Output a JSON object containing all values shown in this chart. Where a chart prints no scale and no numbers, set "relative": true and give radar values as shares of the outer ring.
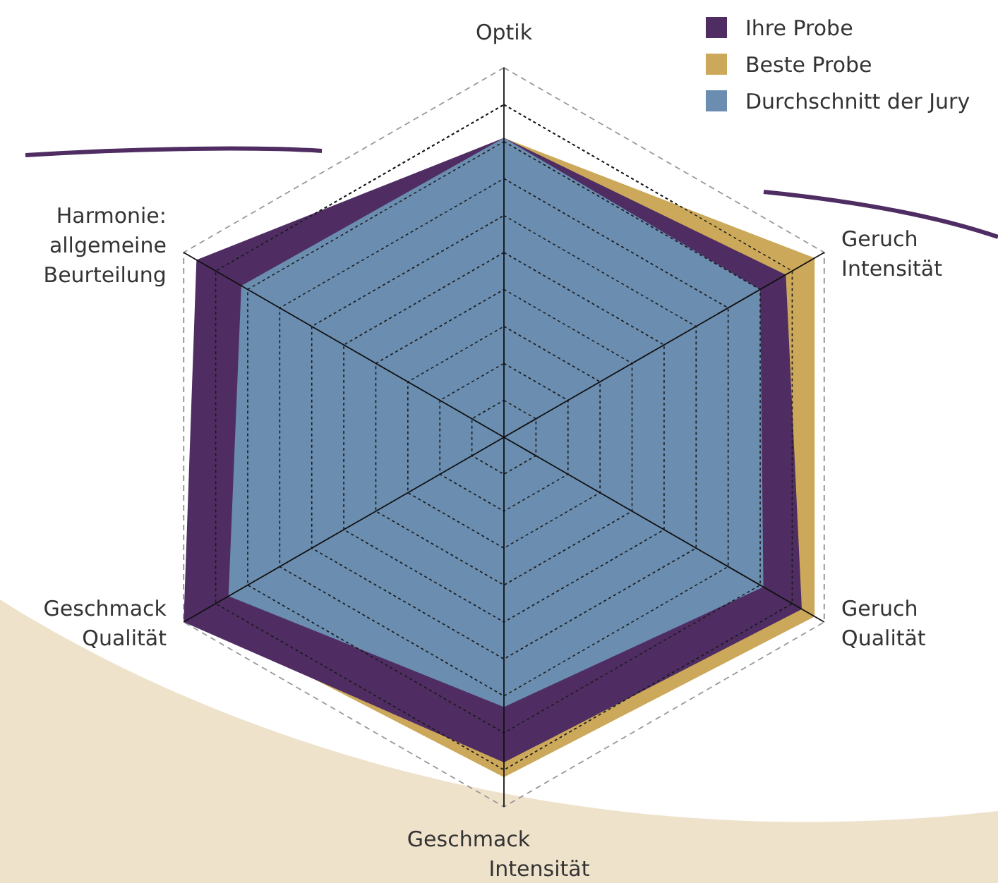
{
  "chart_data": {
    "type": "radar",
    "relative": true,
    "grid": true,
    "legend": "top right",
    "categories": [
      "Optik",
      "Geruch\nIntensität",
      "Geruch\nQualität",
      "Geschmack\nIntensität",
      "Geschmack\nQualität",
      "Harmonie:\nallgemeine\nBeurteilung"
    ],
    "series": [
      {
        "name": "Ihre Probe",
        "color": "#4f2d63",
        "values": [
          0.81,
          0.88,
          0.93,
          0.88,
          1.0,
          0.96
        ]
      },
      {
        "name": "Beste Probe",
        "color": "#cca85a",
        "values": [
          0.81,
          0.97,
          0.97,
          0.92,
          0.97,
          0.95
        ]
      },
      {
        "name": "Durchschnitt der Jury",
        "color": "#6a8db0",
        "values": [
          0.81,
          0.8,
          0.81,
          0.73,
          0.86,
          0.82
        ]
      }
    ]
  }
}
